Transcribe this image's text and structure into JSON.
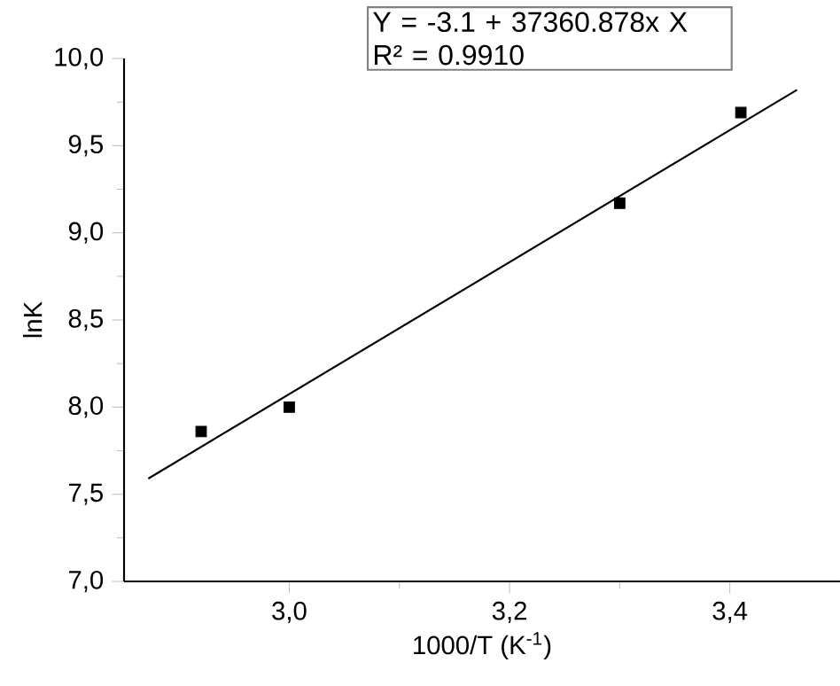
{
  "chart_data": {
    "type": "scatter",
    "xlabel": "1000/T (K$^{-1}$)",
    "ylabel": "lnK",
    "annotations": [
      "Y = -3.1 + 37360.878x X",
      "R² = 0.9910"
    ],
    "xlim": [
      2.85,
      3.5
    ],
    "ylim": [
      7.0,
      10.0
    ],
    "xticks": [
      {
        "value": 3.0,
        "label": "3,0"
      },
      {
        "value": 3.2,
        "label": "3,2"
      },
      {
        "value": 3.4,
        "label": "3,4"
      }
    ],
    "yticks": [
      {
        "value": 7.0,
        "label": "7,0"
      },
      {
        "value": 7.5,
        "label": "7,5"
      },
      {
        "value": 8.0,
        "label": "8,0"
      },
      {
        "value": 8.5,
        "label": "8,5"
      },
      {
        "value": 9.0,
        "label": "9,0"
      },
      {
        "value": 9.5,
        "label": "9,5"
      },
      {
        "value": 10.0,
        "label": "10,0"
      }
    ],
    "grid": false,
    "series": [
      {
        "color": "#000000",
        "marker": "square",
        "x": [
          2.92,
          3.0,
          3.3,
          3.41
        ],
        "values": [
          7.86,
          8.0,
          9.17,
          9.69
        ]
      },
      {
        "type": "line",
        "color": "#000000",
        "line_style": "solid",
        "marker": "none",
        "x": [
          2.872,
          3.461
        ],
        "values": [
          7.59,
          9.82
        ]
      }
    ]
  }
}
